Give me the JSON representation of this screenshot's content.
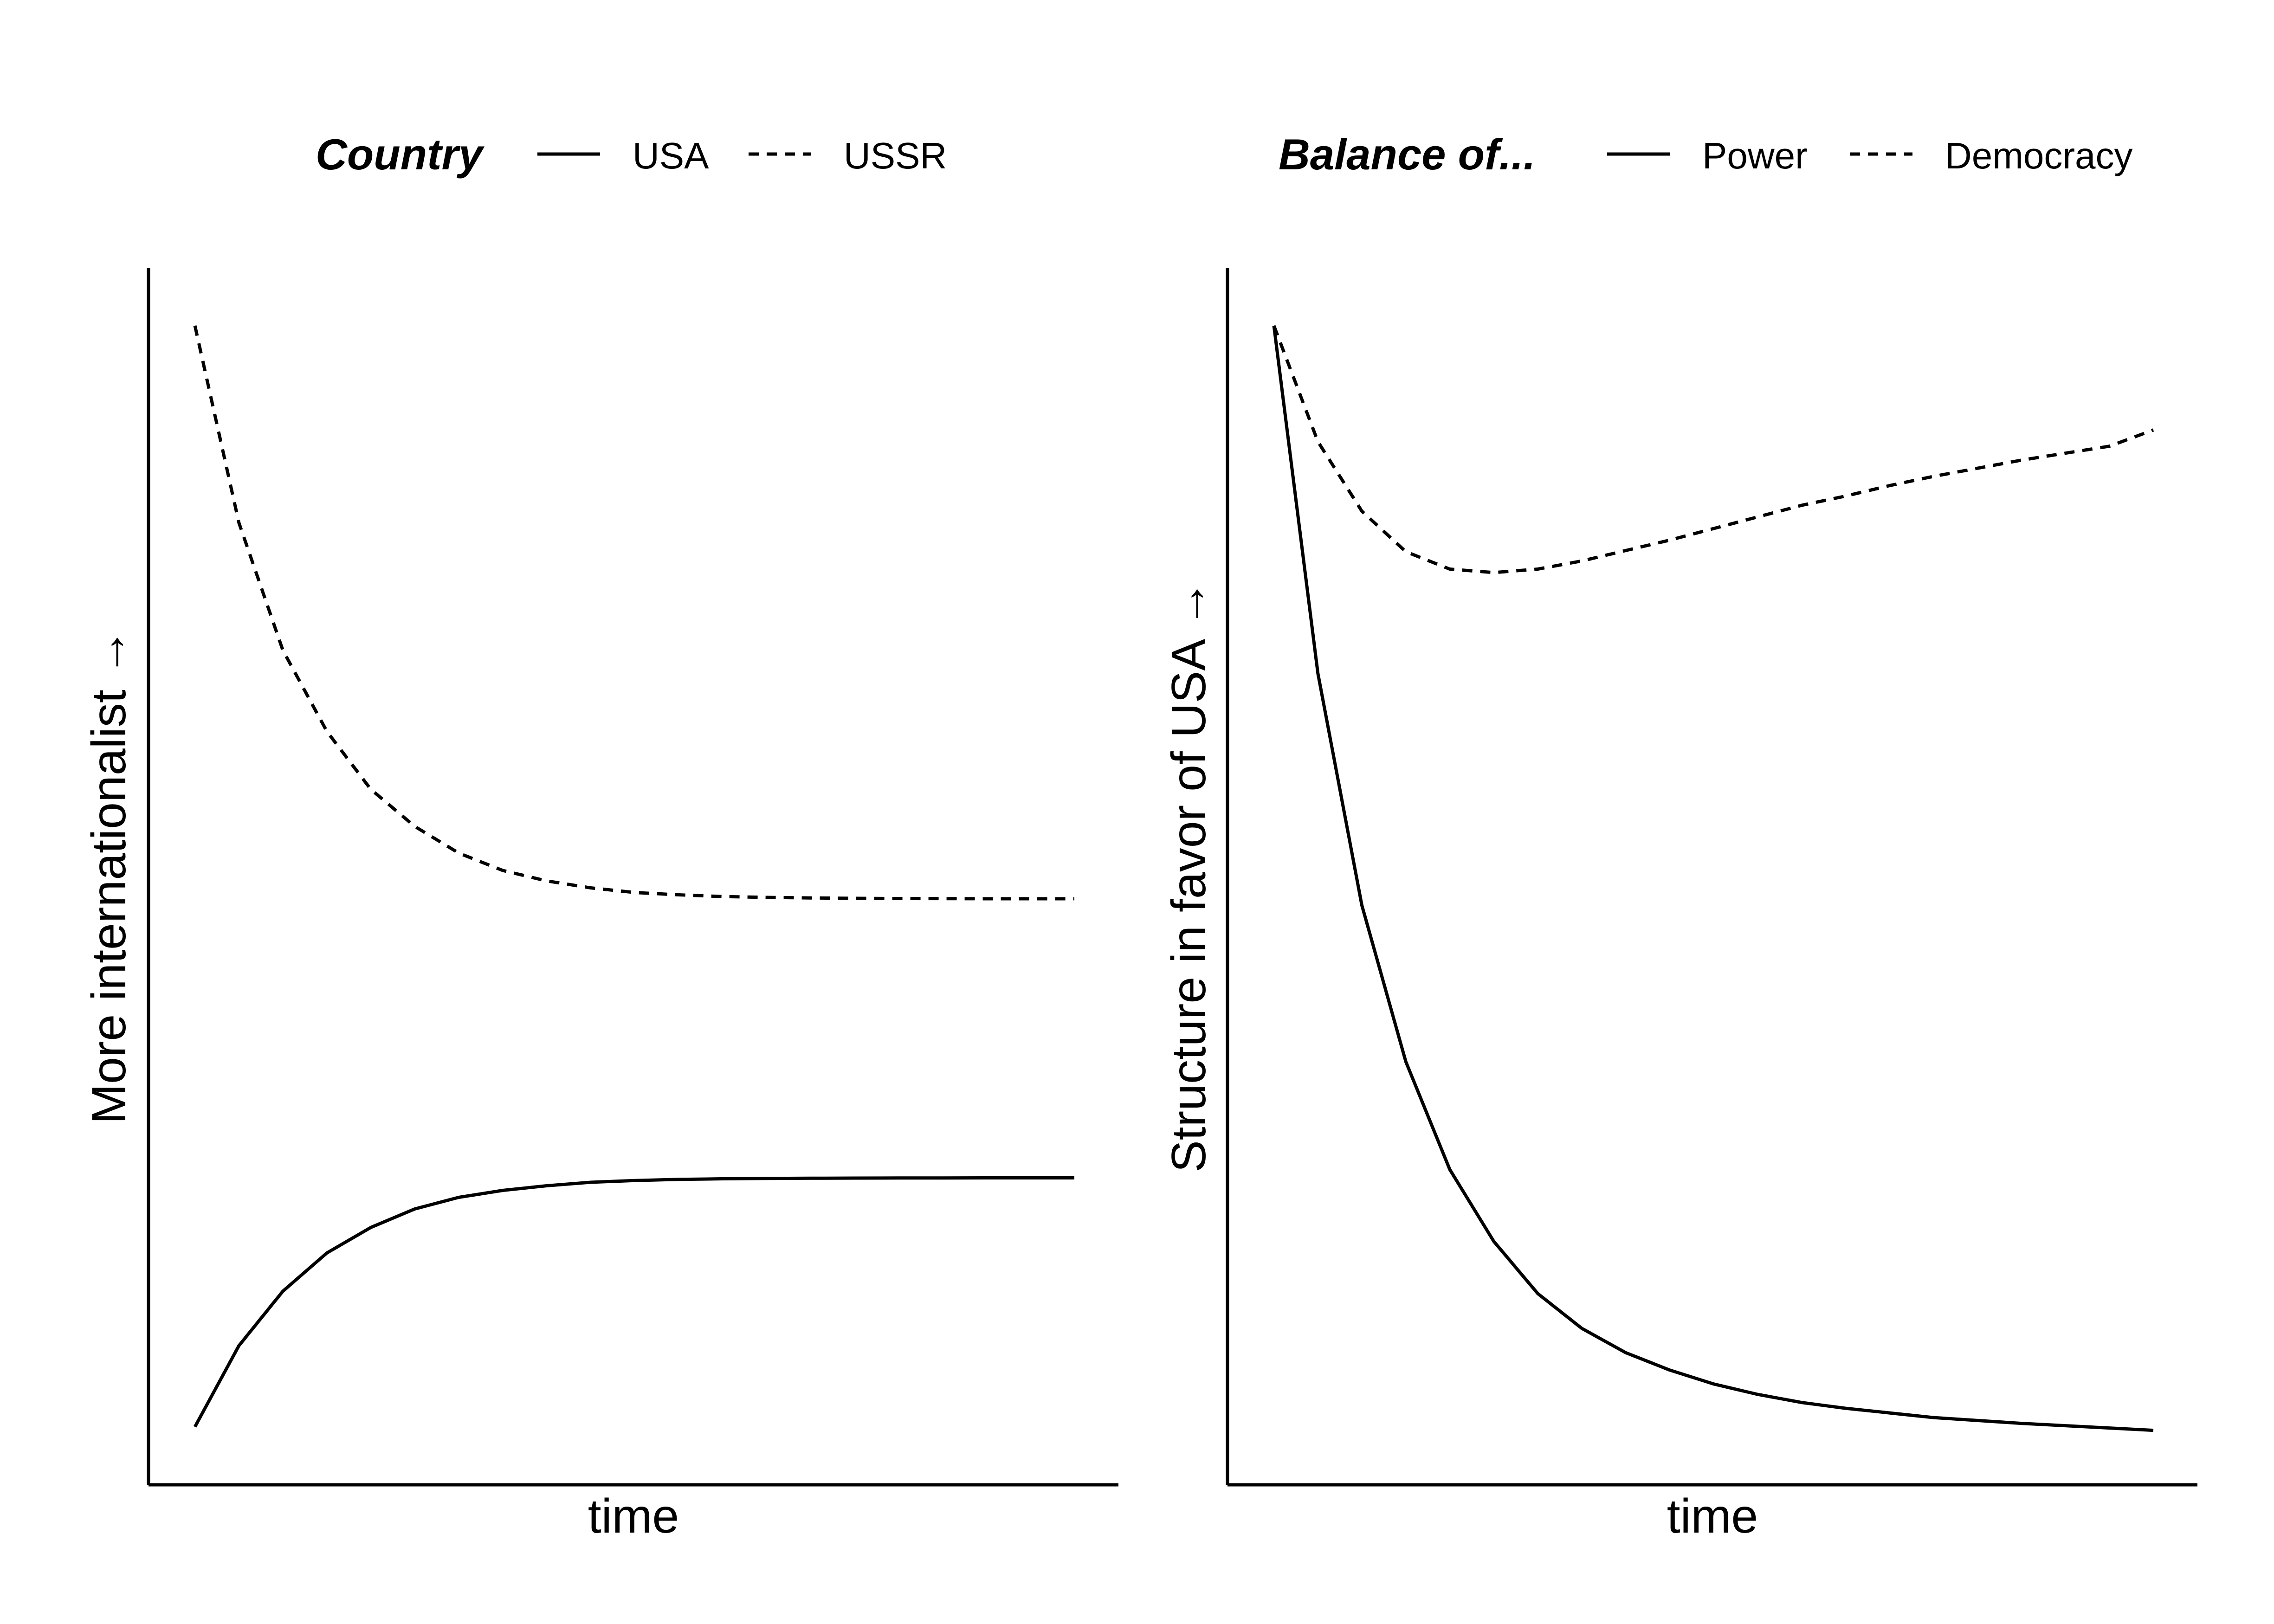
{
  "chart_data": [
    {
      "type": "line",
      "legend": {
        "title": "Country",
        "position": "top"
      },
      "xlabel": "time",
      "ylabel": "More internationalist  →",
      "xlim": [
        0,
        20
      ],
      "ylim": [
        0,
        1.05
      ],
      "grid": false,
      "x": [
        0,
        1,
        2,
        3,
        4,
        5,
        6,
        7,
        8,
        9,
        10,
        11,
        12,
        13,
        14,
        15,
        16,
        17,
        18,
        19,
        20
      ],
      "series": [
        {
          "name": "USA",
          "style": "solid",
          "values": [
            0.05,
            0.12,
            0.167,
            0.2,
            0.222,
            0.238,
            0.248,
            0.254,
            0.258,
            0.261,
            0.2625,
            0.2635,
            0.264,
            0.2643,
            0.2645,
            0.2646,
            0.2647,
            0.2647,
            0.2648,
            0.2648,
            0.2648
          ]
        },
        {
          "name": "USSR",
          "style": "dashed",
          "values": [
            1.0,
            0.83,
            0.72,
            0.65,
            0.6,
            0.568,
            0.545,
            0.53,
            0.521,
            0.515,
            0.511,
            0.509,
            0.5075,
            0.5068,
            0.5063,
            0.506,
            0.5058,
            0.5057,
            0.5056,
            0.5056,
            0.5056
          ]
        }
      ]
    },
    {
      "type": "line",
      "legend": {
        "title": "Balance of...",
        "position": "top"
      },
      "xlabel": "time",
      "ylabel": "Structure in favor of USA  →",
      "xlim": [
        0,
        20
      ],
      "ylim": [
        0,
        1.05
      ],
      "grid": false,
      "x": [
        0,
        1,
        2,
        3,
        4,
        5,
        6,
        7,
        8,
        9,
        10,
        11,
        12,
        13,
        14,
        15,
        16,
        17,
        18,
        19,
        20
      ],
      "series": [
        {
          "name": "Power",
          "style": "solid",
          "values": [
            1.0,
            0.7,
            0.5,
            0.365,
            0.272,
            0.21,
            0.165,
            0.135,
            0.114,
            0.099,
            0.087,
            0.078,
            0.071,
            0.066,
            0.062,
            0.058,
            0.0555,
            0.053,
            0.051,
            0.049,
            0.047
          ]
        },
        {
          "name": "Democracy",
          "style": "dashed",
          "values": [
            1.0,
            0.9,
            0.84,
            0.805,
            0.79,
            0.787,
            0.79,
            0.797,
            0.806,
            0.815,
            0.825,
            0.835,
            0.845,
            0.853,
            0.862,
            0.87,
            0.877,
            0.884,
            0.89,
            0.896,
            0.91
          ]
        }
      ]
    }
  ]
}
